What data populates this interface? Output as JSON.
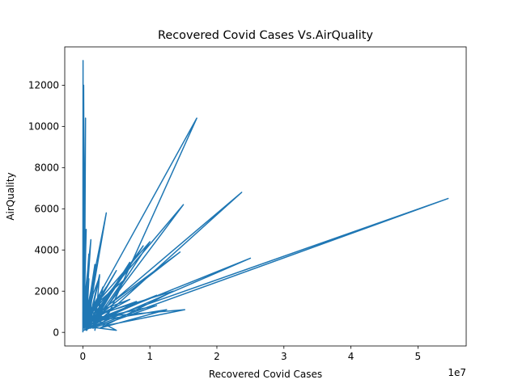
{
  "chart_data": {
    "type": "line",
    "title": "Recovered Covid Cases Vs.AirQuality",
    "xlabel": "Recovered Covid Cases",
    "ylabel": "AirQuality",
    "x_offset_label": "1e7",
    "x_scale": 10000000,
    "xlim": [
      -2700000,
      57200000
    ],
    "ylim": [
      -660,
      13860
    ],
    "x_ticks": [
      0,
      10000000,
      20000000,
      30000000,
      40000000,
      50000000
    ],
    "x_tick_labels": [
      "0",
      "1",
      "2",
      "3",
      "4",
      "5"
    ],
    "y_ticks": [
      0,
      2000,
      4000,
      6000,
      8000,
      10000,
      12000
    ],
    "y_tick_labels": [
      "0",
      "2000",
      "4000",
      "6000",
      "8000",
      "10000",
      "12000"
    ],
    "grid": false,
    "color": "#1f77b4",
    "series": [
      {
        "x": [
          0,
          30000,
          60000,
          120000,
          250000,
          400000,
          150000,
          500000,
          100000,
          700000,
          200000,
          900000,
          300000,
          1200000,
          50000,
          1500000,
          400000,
          1800000,
          600000,
          2000000,
          200000,
          2500000,
          800000,
          3000000,
          100000,
          3500000,
          500000,
          4000000,
          1000000,
          4500000,
          50000,
          5000000,
          300000,
          6000000,
          1500000,
          7000000,
          700000,
          8000000,
          2000000,
          9000000,
          400000,
          11000000,
          1000000,
          12500000,
          2500000,
          13500000,
          600000,
          15200000,
          3000000,
          17000000,
          200000,
          15000000,
          1200000,
          23700000,
          500000,
          25000000,
          100000,
          54500000,
          300000,
          14500000,
          800000,
          11000000,
          1500000,
          10000000,
          400000,
          7000000,
          200000,
          5000000,
          100000,
          3500000,
          600000,
          3000000,
          1800000,
          2500000,
          900000,
          2000000,
          300000,
          1500000,
          100000,
          900000,
          500000,
          600000,
          50000,
          300000,
          0,
          0,
          50000,
          100000,
          0
        ],
        "y": [
          100,
          13200,
          500,
          12000,
          800,
          10400,
          300,
          5000,
          200,
          2600,
          600,
          3800,
          150,
          4500,
          900,
          2000,
          300,
          3300,
          100,
          1500,
          700,
          2700,
          200,
          1000,
          500,
          2200,
          100,
          1800,
          600,
          1200,
          300,
          100,
          900,
          2500,
          400,
          3400,
          200,
          1500,
          800,
          4200,
          300,
          1800,
          500,
          1100,
          200,
          2000,
          700,
          1100,
          300,
          10400,
          500,
          6200,
          200,
          6800,
          400,
          3600,
          100,
          6500,
          300,
          3900,
          600,
          1300,
          200,
          4400,
          800,
          1600,
          400,
          3000,
          200,
          5800,
          300,
          2200,
          100,
          2800,
          500,
          3300,
          200,
          1800,
          400,
          2600,
          100,
          1500,
          300,
          800,
          50,
          1000,
          600,
          400,
          0
        ]
      }
    ]
  }
}
